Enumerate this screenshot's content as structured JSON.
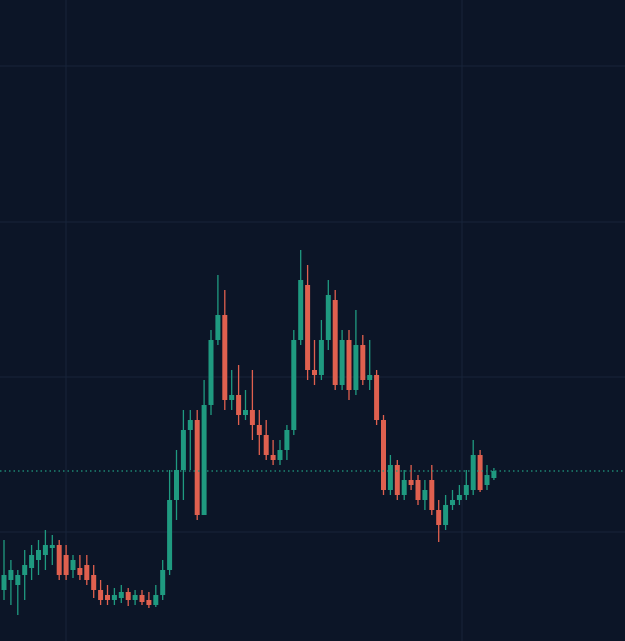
{
  "chart_data": {
    "type": "candlestick",
    "open": [
      51,
      61,
      56,
      66,
      73,
      81,
      86,
      93,
      96,
      86,
      71,
      73,
      76,
      66,
      51,
      46,
      41,
      43,
      49,
      41,
      46,
      41,
      36,
      46,
      71,
      141,
      171,
      211,
      221,
      126,
      236,
      301,
      326,
      241,
      246,
      226,
      231,
      216,
      206,
      186,
      181,
      191,
      211,
      301,
      356,
      271,
      266,
      301,
      341,
      256,
      301,
      251,
      296,
      261,
      266,
      221,
      151,
      176,
      146,
      161,
      161,
      141,
      161,
      131,
      116,
      136,
      141,
      146,
      151,
      186,
      156,
      163
    ],
    "high": [
      101,
      81,
      71,
      91,
      96,
      101,
      111,
      106,
      101,
      96,
      86,
      86,
      86,
      76,
      61,
      56,
      53,
      56,
      53,
      51,
      51,
      49,
      56,
      81,
      171,
      191,
      231,
      231,
      231,
      261,
      311,
      366,
      351,
      271,
      276,
      251,
      271,
      231,
      221,
      201,
      201,
      216,
      311,
      391,
      376,
      301,
      321,
      361,
      351,
      311,
      311,
      331,
      306,
      301,
      271,
      226,
      186,
      181,
      171,
      176,
      166,
      161,
      176,
      141,
      146,
      151,
      156,
      171,
      201,
      191,
      176,
      173
    ],
    "low": [
      41,
      36,
      26,
      41,
      61,
      66,
      71,
      76,
      61,
      61,
      63,
      61,
      56,
      43,
      36,
      36,
      36,
      38,
      35,
      36,
      36,
      33,
      34,
      41,
      66,
      121,
      141,
      171,
      121,
      126,
      226,
      296,
      231,
      231,
      216,
      221,
      201,
      186,
      181,
      176,
      176,
      181,
      206,
      296,
      261,
      256,
      261,
      291,
      251,
      251,
      241,
      246,
      256,
      251,
      216,
      146,
      146,
      141,
      141,
      151,
      136,
      131,
      126,
      99,
      111,
      131,
      136,
      141,
      146,
      149,
      151,
      161
    ],
    "close": [
      66,
      71,
      66,
      76,
      86,
      91,
      96,
      96,
      66,
      66,
      81,
      66,
      61,
      51,
      41,
      41,
      46,
      49,
      41,
      46,
      39,
      36,
      46,
      71,
      141,
      171,
      211,
      221,
      126,
      236,
      301,
      326,
      241,
      246,
      226,
      231,
      216,
      206,
      186,
      181,
      191,
      211,
      301,
      361,
      271,
      266,
      301,
      346,
      256,
      301,
      251,
      296,
      261,
      266,
      221,
      151,
      176,
      146,
      161,
      156,
      141,
      151,
      131,
      116,
      136,
      141,
      146,
      156,
      186,
      151,
      166,
      170
    ],
    "up_color": "#1f9a80",
    "down_color": "#e0604f",
    "ylim": [
      0,
      641
    ],
    "yticks": [
      109,
      264,
      419,
      575
    ],
    "grid": true
  }
}
